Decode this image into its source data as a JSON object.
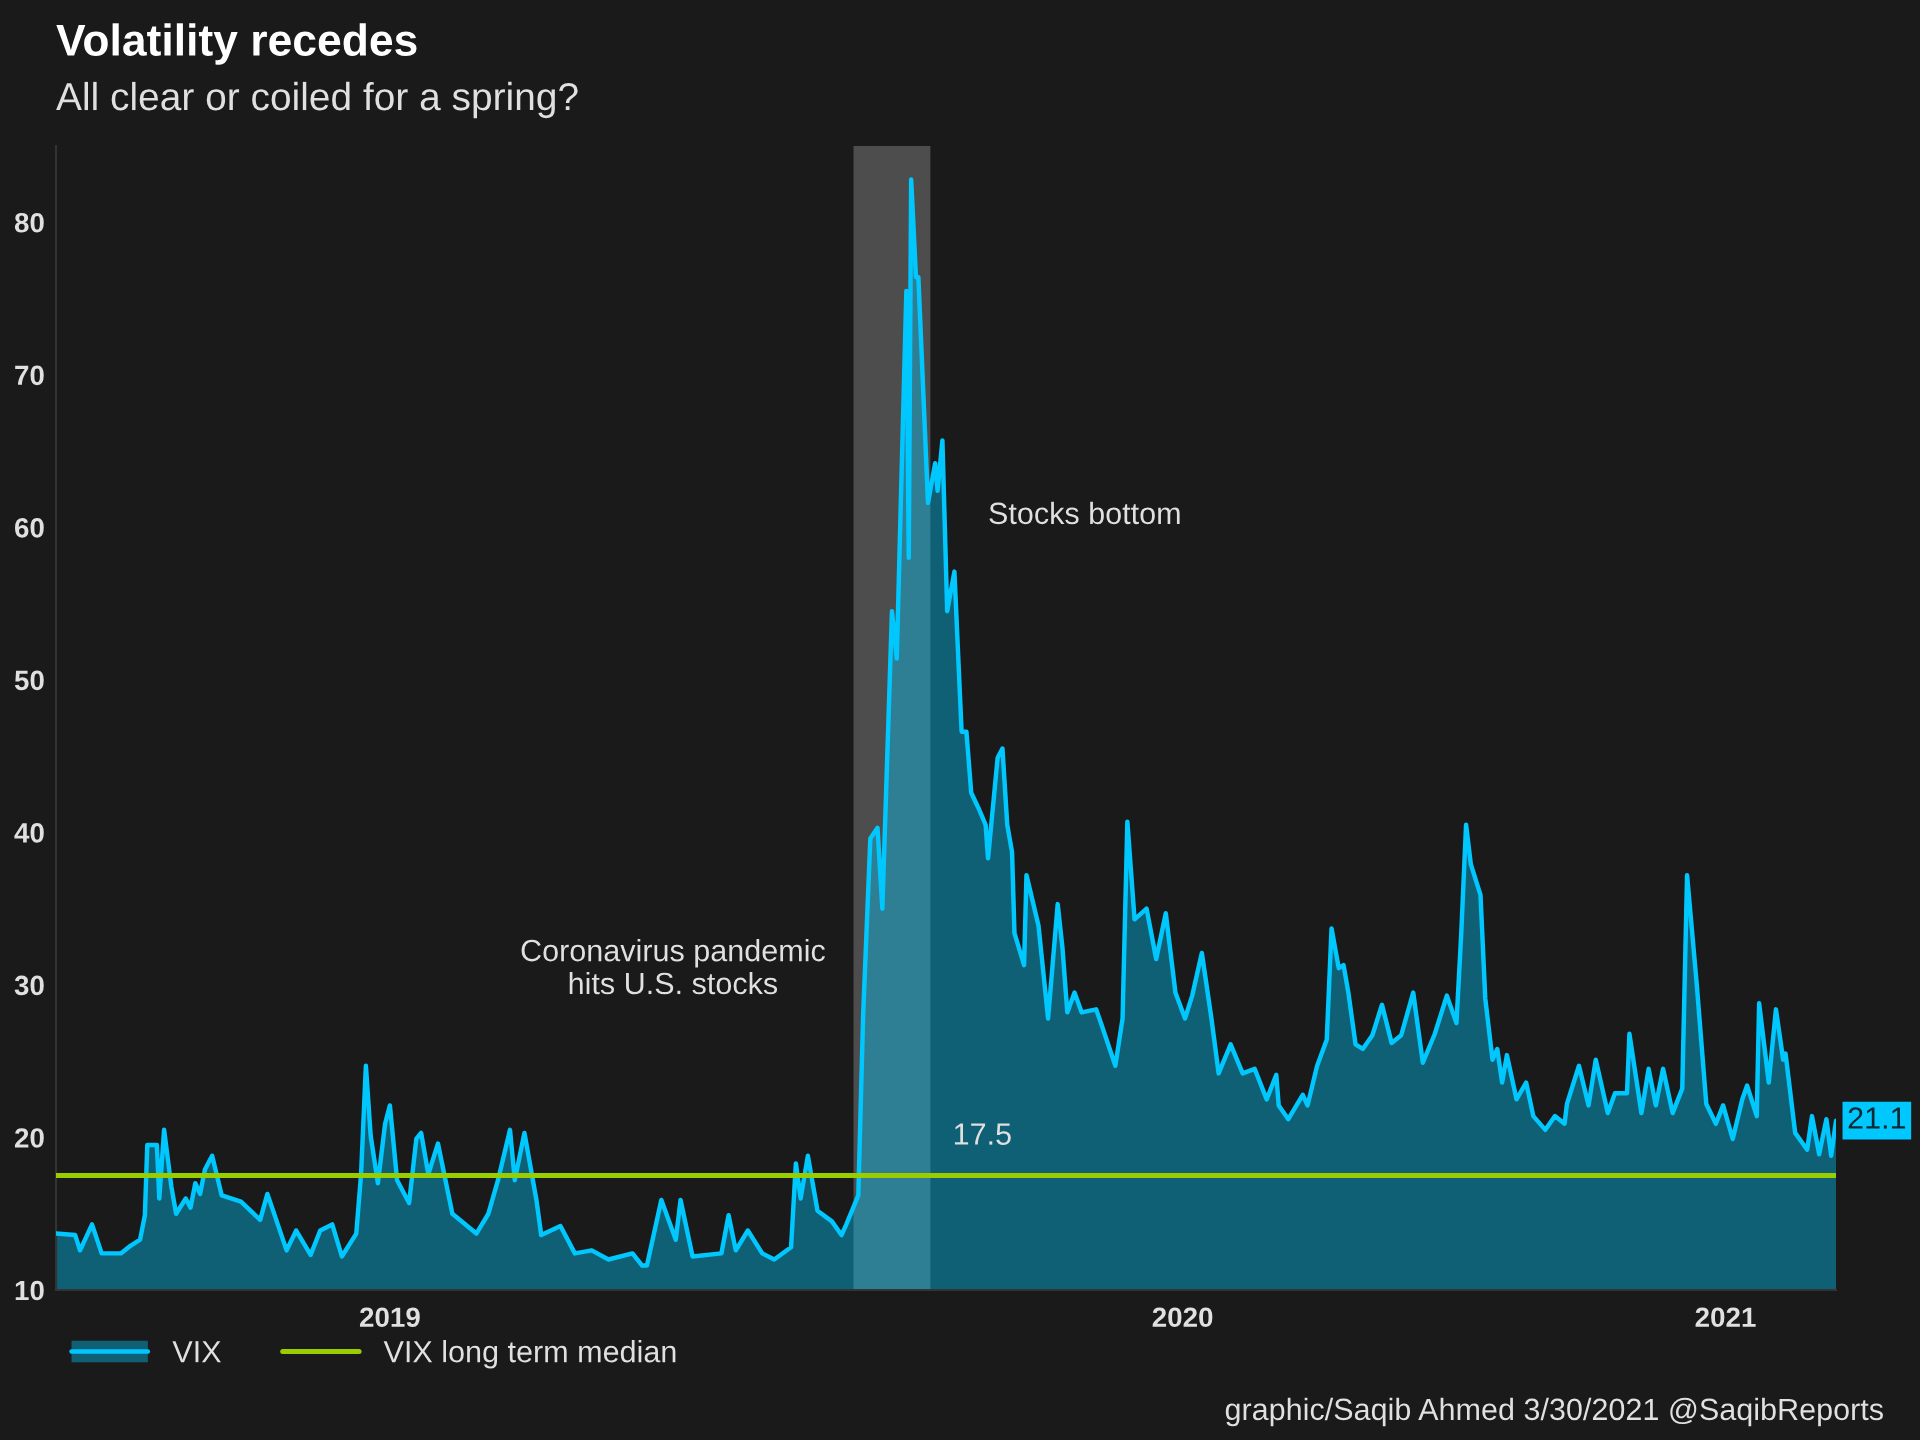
{
  "chart_data": {
    "type": "area",
    "title": "Volatility recedes",
    "subtitle": "All clear or coiled for a spring?",
    "xlim": [
      "2019-03-20",
      "2021-03-30"
    ],
    "xticks": [
      {
        "value": "2019-08-06",
        "label": "2019"
      },
      {
        "value": "2020-07-01",
        "label": "2020"
      },
      {
        "value": "2021-02-12",
        "label": "2021"
      }
    ],
    "ylim": [
      10,
      85
    ],
    "yticks": [
      10,
      20,
      30,
      40,
      50,
      60,
      70,
      80
    ],
    "grid": false,
    "legend": "bottom left",
    "series": [
      {
        "name": "VIX",
        "color": "#00c8ff",
        "x": [
          "2019-03-20",
          "2019-03-28",
          "2019-03-30",
          "2019-04-04",
          "2019-04-08",
          "2019-04-16",
          "2019-04-20",
          "2019-04-24",
          "2019-04-26",
          "2019-04-27",
          "2019-05-01",
          "2019-05-02",
          "2019-05-04",
          "2019-05-07",
          "2019-05-09",
          "2019-05-13",
          "2019-05-15",
          "2019-05-17",
          "2019-05-19",
          "2019-05-21",
          "2019-05-24",
          "2019-05-28",
          "2019-06-05",
          "2019-06-13",
          "2019-06-16",
          "2019-06-24",
          "2019-06-28",
          "2019-07-04",
          "2019-07-08",
          "2019-07-13",
          "2019-07-17",
          "2019-07-23",
          "2019-07-25",
          "2019-07-27",
          "2019-07-29",
          "2019-08-01",
          "2019-08-04",
          "2019-08-06",
          "2019-08-09",
          "2019-08-14",
          "2019-08-17",
          "2019-08-19",
          "2019-08-22",
          "2019-08-26",
          "2019-09-01",
          "2019-09-11",
          "2019-09-16",
          "2019-09-20",
          "2019-09-25",
          "2019-09-27",
          "2019-10-01",
          "2019-10-06",
          "2019-10-08",
          "2019-10-16",
          "2019-10-22",
          "2019-10-29",
          "2019-11-05",
          "2019-11-15",
          "2019-11-19",
          "2019-11-21",
          "2019-11-27",
          "2019-12-03",
          "2019-12-05",
          "2019-12-10",
          "2019-12-22",
          "2019-12-25",
          "2019-12-28",
          "2020-01-02",
          "2020-01-08",
          "2020-01-13",
          "2020-01-20",
          "2020-01-22",
          "2020-01-24",
          "2020-01-27",
          "2020-01-31",
          "2020-02-06",
          "2020-02-10",
          "2020-02-12",
          "2020-02-17",
          "2020-02-19",
          "2020-02-22",
          "2020-02-25",
          "2020-02-27",
          "2020-03-02",
          "2020-03-04",
          "2020-03-08",
          "2020-03-09",
          "2020-03-10",
          "2020-03-12",
          "2020-03-13",
          "2020-03-17",
          "2020-03-20",
          "2020-03-21",
          "2020-03-23",
          "2020-03-25",
          "2020-03-28",
          "2020-03-31",
          "2020-04-02",
          "2020-04-04",
          "2020-04-07",
          "2020-04-10",
          "2020-04-11",
          "2020-04-15",
          "2020-04-17",
          "2020-04-19",
          "2020-04-21",
          "2020-04-22",
          "2020-04-26",
          "2020-04-27",
          "2020-05-02",
          "2020-05-06",
          "2020-05-10",
          "2020-05-12",
          "2020-05-14",
          "2020-05-17",
          "2020-05-20",
          "2020-05-26",
          "2020-05-28",
          "2020-06-03",
          "2020-06-06",
          "2020-06-08",
          "2020-06-11",
          "2020-06-16",
          "2020-06-20",
          "2020-06-24",
          "2020-06-28",
          "2020-07-02",
          "2020-07-05",
          "2020-07-09",
          "2020-07-13",
          "2020-07-16",
          "2020-07-21",
          "2020-07-26",
          "2020-07-31",
          "2020-08-05",
          "2020-08-09",
          "2020-08-10",
          "2020-08-14",
          "2020-08-20",
          "2020-08-22",
          "2020-08-26",
          "2020-08-30",
          "2020-09-01",
          "2020-09-04",
          "2020-09-06",
          "2020-09-08",
          "2020-09-11",
          "2020-09-14",
          "2020-09-18",
          "2020-09-22",
          "2020-09-26",
          "2020-09-30",
          "2020-10-05",
          "2020-10-09",
          "2020-10-14",
          "2020-10-19",
          "2020-10-23",
          "2020-10-25",
          "2020-10-27",
          "2020-10-29",
          "2020-11-02",
          "2020-11-04",
          "2020-11-07",
          "2020-11-09",
          "2020-11-11",
          "2020-11-13",
          "2020-11-17",
          "2020-11-21",
          "2020-11-24",
          "2020-11-29",
          "2020-12-03",
          "2020-12-07",
          "2020-12-08",
          "2020-12-13",
          "2020-12-17",
          "2020-12-20",
          "2020-12-25",
          "2020-12-28",
          "2021-01-02",
          "2021-01-03",
          "2021-01-08",
          "2021-01-11",
          "2021-01-14",
          "2021-01-17",
          "2021-01-21",
          "2021-01-25",
          "2021-01-27",
          "2021-01-31",
          "2021-02-04",
          "2021-02-08",
          "2021-02-11",
          "2021-02-15",
          "2021-02-19",
          "2021-02-21",
          "2021-02-25",
          "2021-02-26",
          "2021-03-02",
          "2021-03-05",
          "2021-03-08",
          "2021-03-09",
          "2021-03-13",
          "2021-03-18",
          "2021-03-20",
          "2021-03-23",
          "2021-03-26",
          "2021-03-28",
          "2021-03-30"
        ],
        "values": [
          13.7,
          13.6,
          12.6,
          14.3,
          12.4,
          12.4,
          12.9,
          13.3,
          14.9,
          19.5,
          19.5,
          16.0,
          20.5,
          16.8,
          15.0,
          16.0,
          15.4,
          17.0,
          16.3,
          17.9,
          18.8,
          16.2,
          15.8,
          14.6,
          16.3,
          12.6,
          13.9,
          12.3,
          13.9,
          14.3,
          12.2,
          13.7,
          17.6,
          24.7,
          20.1,
          17.0,
          20.9,
          22.1,
          17.2,
          15.7,
          19.9,
          20.3,
          17.6,
          19.6,
          15.0,
          13.7,
          15.0,
          17.2,
          20.5,
          17.2,
          20.3,
          15.9,
          13.6,
          14.2,
          12.4,
          12.6,
          12.0,
          12.4,
          11.6,
          11.6,
          15.9,
          13.3,
          15.9,
          12.2,
          12.4,
          14.9,
          12.6,
          13.9,
          12.4,
          12.0,
          12.8,
          18.3,
          16.0,
          18.8,
          15.2,
          14.5,
          13.6,
          14.3,
          16.2,
          28.0,
          39.6,
          40.3,
          35.0,
          54.5,
          51.4,
          75.5,
          58.0,
          82.8,
          76.4,
          76.4,
          61.6,
          64.2,
          62.4,
          65.7,
          54.5,
          57.1,
          46.6,
          46.6,
          42.6,
          41.6,
          40.5,
          38.3,
          44.9,
          45.5,
          40.5,
          38.7,
          33.4,
          31.3,
          37.2,
          33.9,
          27.8,
          35.3,
          32.4,
          28.2,
          29.5,
          28.2,
          28.4,
          27.5,
          24.7,
          27.8,
          40.7,
          34.3,
          35.0,
          31.7,
          34.7,
          29.5,
          27.8,
          29.3,
          32.1,
          27.8,
          24.2,
          26.1,
          24.2,
          24.5,
          22.5,
          24.1,
          22.1,
          21.2,
          22.8,
          22.1,
          24.7,
          26.4,
          33.7,
          31.1,
          31.3,
          29.5,
          26.1,
          25.8,
          26.7,
          28.7,
          26.2,
          26.7,
          29.5,
          24.9,
          26.8,
          29.3,
          27.5,
          33.4,
          40.5,
          37.9,
          35.9,
          29.1,
          25.1,
          25.8,
          23.6,
          25.4,
          22.5,
          23.6,
          21.4,
          20.5,
          21.4,
          20.9,
          22.2,
          24.7,
          22.1,
          25.1,
          21.6,
          22.9,
          22.9,
          26.8,
          21.6,
          24.5,
          22.1,
          24.5,
          21.6,
          23.2,
          37.2,
          30.1,
          22.2,
          20.9,
          22.1,
          19.9,
          22.5,
          23.4,
          21.4,
          28.8,
          23.6,
          28.4,
          25.1,
          25.5,
          20.3,
          19.2,
          21.4,
          18.9,
          21.2,
          18.8,
          21.1
        ]
      },
      {
        "name": "VIX long term median",
        "type": "line",
        "color": "#9acd00",
        "x": [
          "2019-03-20",
          "2021-03-30"
        ],
        "values": [
          17.5,
          17.5
        ]
      }
    ],
    "bands": [
      {
        "axis": "x",
        "from": "2020-02-15",
        "to": "2020-03-18",
        "color": "#4d4d4d"
      }
    ],
    "annotations": [
      {
        "text": "Coronavirus pandemic\nhits U.S. stocks",
        "x": "2020-02-15",
        "y": 31
      },
      {
        "text": "17.5",
        "x": "2020-03-18",
        "y": 17.5
      },
      {
        "text": "21.1",
        "x": "2021-03-30",
        "y": 21.1
      },
      "Stocks bottom",
      "graphic/Saqib Ahmed 3/30/2021 @SaqibReports"
    ]
  }
}
